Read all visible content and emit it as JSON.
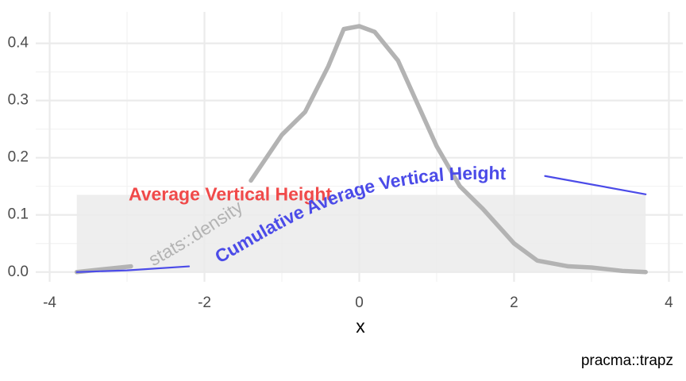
{
  "chart_data": {
    "type": "line",
    "x_label": "x",
    "caption": "pracma::trapz",
    "xlim": [
      -4.18,
      4.18
    ],
    "ylim": [
      -0.017,
      0.455
    ],
    "xticks": [
      -4,
      -2,
      0,
      2,
      4
    ],
    "yticks": [
      {
        "value": 0,
        "label": "0.0"
      },
      {
        "value": 0.1,
        "label": "0.1"
      },
      {
        "value": 0.2,
        "label": "0.2"
      },
      {
        "value": 0.3,
        "label": "0.3"
      },
      {
        "value": 0.4,
        "label": "0.4"
      }
    ],
    "grid": true,
    "average": {
      "label": "Average Vertical Height",
      "value": 0.135,
      "xmin": -3.65,
      "xmax": 3.7,
      "color": "#f04a4a",
      "fill": "#ebebeb"
    },
    "series": [
      {
        "name": "stats::density",
        "color": "#b3b3b3",
        "x": [
          -3.65,
          -3.3,
          -2.95,
          -2.0,
          -1.4,
          -1.0,
          -0.7,
          -0.4,
          -0.2,
          0,
          0.2,
          0.5,
          0.8,
          1.0,
          1.3,
          1.6,
          2.0,
          2.3,
          2.7,
          3.0,
          3.4,
          3.7
        ],
        "values": [
          0.0,
          0.005,
          0.01,
          null,
          0.16,
          0.24,
          0.28,
          0.36,
          0.425,
          0.43,
          0.42,
          0.37,
          0.28,
          0.22,
          0.15,
          0.11,
          0.05,
          0.02,
          0.01,
          0.008,
          0.002,
          0.0
        ]
      },
      {
        "name": "Cumulative Average Vertical Height",
        "color": "#4b4be8",
        "x": [
          -3.65,
          -3.0,
          -2.2,
          0,
          2.4,
          3.7
        ],
        "values": [
          0.0,
          0.003,
          0.01,
          null,
          0.168,
          0.136
        ]
      }
    ]
  }
}
